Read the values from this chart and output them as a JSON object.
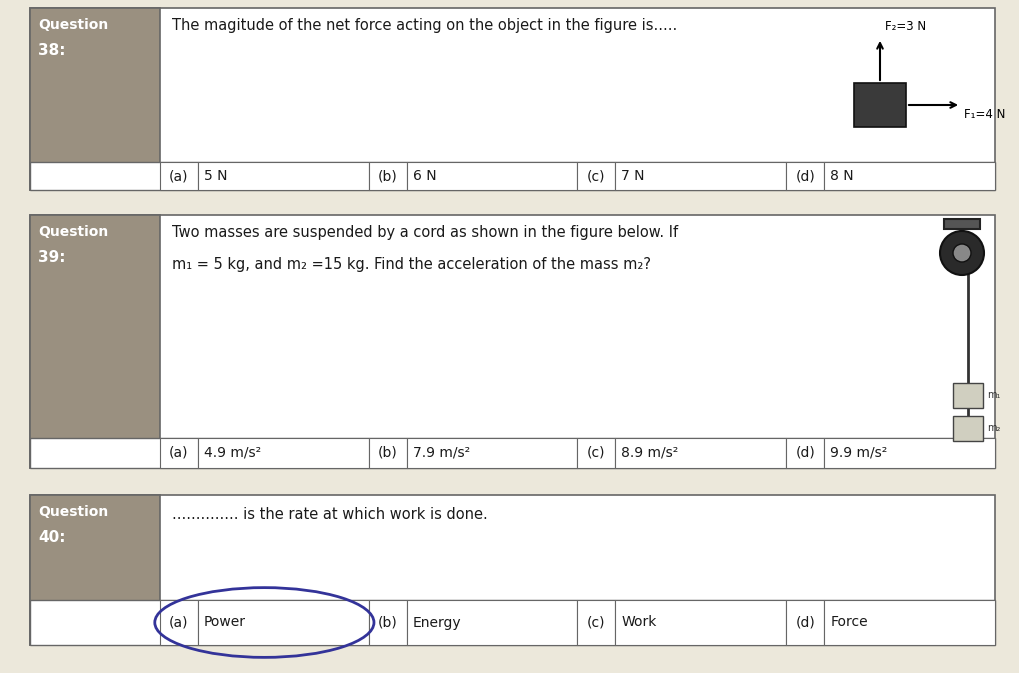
{
  "bg_color": "#e8e4d8",
  "q38_number": "38:",
  "q39_number": "39:",
  "q40_number": "40:",
  "q38_question": "The magitude of the net force acting on the object in the figure is.....",
  "q39_question_line1": "Two masses are suspended by a cord as shown in the figure below. If",
  "q39_question_line2": "m₁ = 5 kg, and m₂ =15 kg. Find the acceleration of the mass m₂?",
  "q40_question": ".............. is the rate at which work is done.",
  "q38_choices_letter": [
    "(a)",
    "(b)",
    "(c)",
    "(d)"
  ],
  "q38_choices_text": [
    "5 N",
    "6 N",
    "7 N",
    "8 N"
  ],
  "q39_choices_letter": [
    "(a)",
    "(b)",
    "(c)",
    "(d)"
  ],
  "q39_choices_text": [
    "4.9 m/s²",
    "7.9 m/s²",
    "8.9 m/s²",
    "9.9 m/s²"
  ],
  "q40_choices_letter": [
    "(a)",
    "(b)",
    "(c)",
    "(d)"
  ],
  "q40_choices_text": [
    "Power",
    "Energy",
    "Work",
    "Force"
  ],
  "paper_color": "#ece8db",
  "gray_cell_color": "#9a9080",
  "border_color": "#666666",
  "text_color": "#1a1a1a",
  "white_cell": "#ffffff",
  "force_box_color": "#3a3a3a",
  "arrow_color": "#111111",
  "f2_label": "F₂=3 N",
  "f1_label": "F₁=4 N",
  "circle_color": "#333399"
}
